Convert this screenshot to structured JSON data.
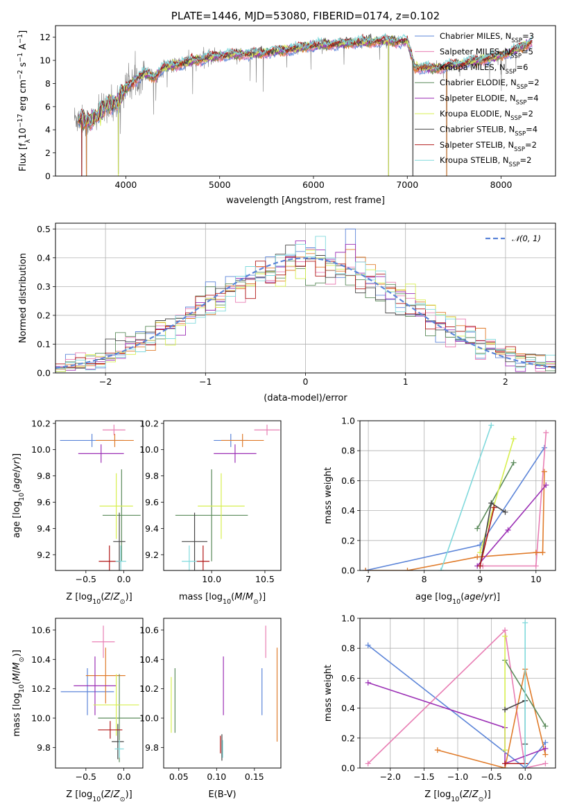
{
  "colors": {
    "Chabrier MILES": "#5b84d8",
    "Salpeter MILES": "#e87db3",
    "Kroupa MILES": "#e07b2a",
    "Chabrier ELODIE": "#5a8a5a",
    "Salpeter ELODIE": "#9b2fb5",
    "Kroupa ELODIE": "#d7ef4e",
    "Chabrier STELIB": "#444444",
    "Salpeter STELIB": "#b01515",
    "Kroupa STELIB": "#7fd9dc",
    "data": "#7a7a7a",
    "normal": "#5b84d8"
  },
  "chart_data": [
    {
      "id": "spectrum",
      "type": "line",
      "title": "PLATE=1446, MJD=53080, FIBERID=0174, z=0.102",
      "xlabel": "wavelength [Angstrom, rest frame]",
      "ylabel": "Flux [fλ10⁻¹⁷ erg cm⁻² s⁻¹ A⁻¹]",
      "xlim": [
        3250,
        8580
      ],
      "ylim": [
        0,
        13
      ],
      "xticks": [
        4000,
        5000,
        6000,
        7000,
        8000
      ],
      "yticks": [
        0,
        2,
        4,
        6,
        8,
        10,
        12
      ],
      "grid": false,
      "legend_position": "right",
      "legend": [
        {
          "label": "Chabrier MILES, N",
          "sub": "SSP",
          "suffix": "=3",
          "key": "Chabrier MILES"
        },
        {
          "label": "Salpeter MILES, N",
          "sub": "SSP",
          "suffix": "=5",
          "key": "Salpeter MILES"
        },
        {
          "label": "Kroupa MILES, N",
          "sub": "SSP",
          "suffix": "=6",
          "key": "Kroupa MILES"
        },
        {
          "label": "Chabrier ELODIE, N",
          "sub": "SSP",
          "suffix": "=2",
          "key": "Chabrier ELODIE"
        },
        {
          "label": "Salpeter ELODIE, N",
          "sub": "SSP",
          "suffix": "=4",
          "key": "Salpeter ELODIE"
        },
        {
          "label": "Kroupa ELODIE, N",
          "sub": "SSP",
          "suffix": "=2",
          "key": "Kroupa ELODIE"
        },
        {
          "label": "Chabrier STELIB, N",
          "sub": "SSP",
          "suffix": "=4",
          "key": "Chabrier STELIB"
        },
        {
          "label": "Salpeter STELIB, N",
          "sub": "SSP",
          "suffix": "=2",
          "key": "Salpeter STELIB"
        },
        {
          "label": "Kroupa STELIB, N",
          "sub": "SSP",
          "suffix": "=2",
          "key": "Kroupa STELIB"
        }
      ],
      "continuum": [
        [
          3450,
          5.0
        ],
        [
          3600,
          4.7
        ],
        [
          3700,
          5.2
        ],
        [
          3800,
          6.2
        ],
        [
          3900,
          6.3
        ],
        [
          4000,
          7.6
        ],
        [
          4100,
          8.3
        ],
        [
          4200,
          8.9
        ],
        [
          4300,
          8.5
        ],
        [
          4400,
          9.4
        ],
        [
          4600,
          9.7
        ],
        [
          4800,
          10.1
        ],
        [
          5000,
          10.4
        ],
        [
          5200,
          10.5
        ],
        [
          5400,
          10.6
        ],
        [
          5600,
          10.8
        ],
        [
          5800,
          11.0
        ],
        [
          6000,
          11.3
        ],
        [
          6200,
          11.4
        ],
        [
          6400,
          11.5
        ],
        [
          6600,
          11.6
        ],
        [
          6800,
          11.7
        ],
        [
          7000,
          11.6
        ],
        [
          7080,
          9.4
        ],
        [
          7300,
          9.3
        ],
        [
          7500,
          9.6
        ],
        [
          7700,
          9.9
        ],
        [
          7900,
          10.2
        ],
        [
          8100,
          10.7
        ],
        [
          8330,
          11.6
        ]
      ],
      "dips": [
        [
          3530,
          0
        ],
        [
          3580,
          0
        ],
        [
          3920,
          0.2
        ],
        [
          6800,
          0
        ],
        [
          7060,
          0
        ],
        [
          7420,
          0
        ]
      ]
    },
    {
      "id": "residuals",
      "type": "bar",
      "xlabel": "(data-model)/error",
      "ylabel": "Normed distribution",
      "xlim": [
        -2.5,
        2.5
      ],
      "ylim": [
        0,
        0.52
      ],
      "xticks": [
        -2,
        -1,
        0,
        1,
        2
      ],
      "yticks": [
        0,
        0.1,
        0.2,
        0.3,
        0.4,
        0.5
      ],
      "grid": true,
      "legend_position": "top-right",
      "legend_label": "𝒩(0, 1)",
      "bin_width": 0.1,
      "gaussian": {
        "mu": 0,
        "sigma": 1
      }
    },
    {
      "id": "age-vs-Z",
      "type": "scatter",
      "xlabel": "Z [log10(Z/Z⊙)]",
      "ylabel": "age [log10(age/yr)]",
      "xlim": [
        -0.9,
        0.25
      ],
      "ylim": [
        9.08,
        10.22
      ],
      "xticks": [
        -0.5,
        0.0
      ],
      "yticks": [
        9.2,
        9.4,
        9.6,
        9.8,
        10.0,
        10.2
      ],
      "grid": false,
      "points": [
        {
          "key": "Chabrier MILES",
          "x": -0.42,
          "y": 10.07,
          "xerr": 0.42,
          "yerr": 0.05
        },
        {
          "key": "Salpeter MILES",
          "x": -0.13,
          "y": 10.15,
          "xerr": 0.15,
          "yerr": 0.04
        },
        {
          "key": "Kroupa MILES",
          "x": -0.12,
          "y": 10.07,
          "xerr": 0.25,
          "yerr": 0.05
        },
        {
          "key": "Chabrier ELODIE",
          "x": -0.03,
          "y": 9.5,
          "xerr": 0.25,
          "yerr": 0.35
        },
        {
          "key": "Salpeter ELODIE",
          "x": -0.3,
          "y": 9.97,
          "xerr": 0.3,
          "yerr": 0.07
        },
        {
          "key": "Kroupa ELODIE",
          "x": -0.1,
          "y": 9.57,
          "xerr": 0.22,
          "yerr": 0.25
        },
        {
          "key": "Chabrier STELIB",
          "x": -0.06,
          "y": 9.3,
          "xerr": 0.08,
          "yerr": 0.22
        },
        {
          "key": "Salpeter STELIB",
          "x": -0.19,
          "y": 9.15,
          "xerr": 0.14,
          "yerr": 0.12
        },
        {
          "key": "Kroupa STELIB",
          "x": -0.04,
          "y": 9.15,
          "xerr": 0.07,
          "yerr": 0.12
        }
      ]
    },
    {
      "id": "age-vs-mass",
      "type": "scatter",
      "xlabel": "mass [log10(M/M⊙)]",
      "ylabel": "",
      "xlim": [
        9.55,
        10.65
      ],
      "ylim": [
        9.08,
        10.22
      ],
      "xticks": [
        10.0,
        10.5
      ],
      "yticks": [
        9.2,
        9.4,
        9.6,
        9.8,
        10.0,
        10.2
      ],
      "grid": false,
      "points": [
        {
          "key": "Chabrier MILES",
          "x": 10.18,
          "y": 10.07,
          "xerr": 0.16,
          "yerr": 0.05
        },
        {
          "key": "Salpeter MILES",
          "x": 10.52,
          "y": 10.15,
          "xerr": 0.12,
          "yerr": 0.04
        },
        {
          "key": "Kroupa MILES",
          "x": 10.29,
          "y": 10.07,
          "xerr": 0.2,
          "yerr": 0.05
        },
        {
          "key": "Chabrier ELODIE",
          "x": 10.0,
          "y": 9.5,
          "xerr": 0.34,
          "yerr": 0.35
        },
        {
          "key": "Salpeter ELODIE",
          "x": 10.22,
          "y": 9.97,
          "xerr": 0.2,
          "yerr": 0.07
        },
        {
          "key": "Kroupa ELODIE",
          "x": 10.09,
          "y": 9.57,
          "xerr": 0.22,
          "yerr": 0.25
        },
        {
          "key": "Chabrier STELIB",
          "x": 9.84,
          "y": 9.3,
          "xerr": 0.12,
          "yerr": 0.22
        },
        {
          "key": "Salpeter STELIB",
          "x": 9.92,
          "y": 9.15,
          "xerr": 0.06,
          "yerr": 0.12
        },
        {
          "key": "Kroupa STELIB",
          "x": 9.79,
          "y": 9.15,
          "xerr": 0.07,
          "yerr": 0.12
        }
      ]
    },
    {
      "id": "weight-vs-age",
      "type": "line",
      "xlabel": "age [log10(age/yr)]",
      "ylabel": "mass weight",
      "xlim": [
        6.85,
        10.35
      ],
      "ylim": [
        0,
        1
      ],
      "xticks": [
        7,
        8,
        9,
        10
      ],
      "yticks": [
        0.0,
        0.2,
        0.4,
        0.6,
        0.8,
        1.0
      ],
      "grid": true,
      "series": [
        {
          "key": "Chabrier MILES",
          "x": [
            6.95,
            9.0,
            10.15
          ],
          "y": [
            0.0,
            0.17,
            0.82
          ]
        },
        {
          "key": "Salpeter MILES",
          "x": [
            9.05,
            10.0,
            10.18
          ],
          "y": [
            0.03,
            0.03,
            0.92
          ]
        },
        {
          "key": "Kroupa MILES",
          "x": [
            6.95,
            7.7,
            8.95,
            10.0,
            10.12,
            10.15
          ],
          "y": [
            0.0,
            0.0,
            0.09,
            0.12,
            0.12,
            0.66
          ]
        },
        {
          "key": "Chabrier ELODIE",
          "x": [
            8.95,
            9.6
          ],
          "y": [
            0.28,
            0.72
          ]
        },
        {
          "key": "Salpeter ELODIE",
          "x": [
            8.95,
            9.5,
            10.18
          ],
          "y": [
            0.03,
            0.27,
            0.57
          ]
        },
        {
          "key": "Kroupa ELODIE",
          "x": [
            9.0,
            9.6
          ],
          "y": [
            0.12,
            0.88
          ]
        },
        {
          "key": "Chabrier STELIB",
          "x": [
            9.0,
            9.2,
            9.45
          ],
          "y": [
            0.03,
            0.45,
            0.39
          ]
        },
        {
          "key": "Salpeter STELIB",
          "x": [
            9.0,
            9.25
          ],
          "y": [
            0.03,
            0.42
          ]
        },
        {
          "key": "Kroupa STELIB",
          "x": [
            8.3,
            9.2
          ],
          "y": [
            0.0,
            0.97
          ]
        }
      ]
    },
    {
      "id": "mass-vs-Z",
      "type": "scatter",
      "xlabel": "Z [log10(Z/Z⊙)]",
      "ylabel": "mass [log10(M/M⊙)]",
      "xlim": [
        -0.9,
        0.25
      ],
      "ylim": [
        9.66,
        10.68
      ],
      "xticks": [
        -0.5,
        0.0
      ],
      "yticks": [
        9.8,
        10.0,
        10.2,
        10.4,
        10.6
      ],
      "grid": false,
      "points": [
        {
          "key": "Chabrier MILES",
          "x": -0.48,
          "y": 10.18,
          "xerr": 0.35,
          "yerr": 0.16
        },
        {
          "key": "Salpeter MILES",
          "x": -0.27,
          "y": 10.52,
          "xerr": 0.15,
          "yerr": 0.11
        },
        {
          "key": "Kroupa MILES",
          "x": -0.24,
          "y": 10.29,
          "xerr": 0.26,
          "yerr": 0.19
        },
        {
          "key": "Chabrier ELODIE",
          "x": -0.06,
          "y": 10.0,
          "xerr": 0.28,
          "yerr": 0.3
        },
        {
          "key": "Salpeter ELODIE",
          "x": -0.38,
          "y": 10.22,
          "xerr": 0.28,
          "yerr": 0.2
        },
        {
          "key": "Kroupa ELODIE",
          "x": -0.1,
          "y": 10.09,
          "xerr": 0.3,
          "yerr": 0.21
        },
        {
          "key": "Chabrier STELIB",
          "x": -0.08,
          "y": 9.84,
          "xerr": 0.08,
          "yerr": 0.12
        },
        {
          "key": "Salpeter STELIB",
          "x": -0.18,
          "y": 9.92,
          "xerr": 0.16,
          "yerr": 0.06
        },
        {
          "key": "Kroupa STELIB",
          "x": -0.06,
          "y": 9.79,
          "xerr": 0.06,
          "yerr": 0.06
        }
      ]
    },
    {
      "id": "mass-vs-ebv",
      "type": "scatter",
      "xlabel": "E(B-V)",
      "ylabel": "",
      "xlim": [
        0.03,
        0.185
      ],
      "ylim": [
        9.66,
        10.68
      ],
      "xticks": [
        0.05,
        0.1,
        0.15
      ],
      "yticks": [
        9.8,
        10.0,
        10.2,
        10.4,
        10.6
      ],
      "grid": false,
      "points": [
        {
          "key": "Chabrier MILES",
          "x": 0.16,
          "y": 10.18,
          "xerr": 0,
          "yerr": 0.16
        },
        {
          "key": "Salpeter MILES",
          "x": 0.165,
          "y": 10.52,
          "xerr": 0,
          "yerr": 0.11
        },
        {
          "key": "Kroupa MILES",
          "x": 0.18,
          "y": 10.16,
          "xerr": 0,
          "yerr": 0.32
        },
        {
          "key": "Chabrier ELODIE",
          "x": 0.045,
          "y": 10.12,
          "xerr": 0,
          "yerr": 0.22
        },
        {
          "key": "Salpeter ELODIE",
          "x": 0.109,
          "y": 10.22,
          "xerr": 0,
          "yerr": 0.2
        },
        {
          "key": "Kroupa ELODIE",
          "x": 0.04,
          "y": 10.09,
          "xerr": 0,
          "yerr": 0.19
        },
        {
          "key": "Chabrier STELIB",
          "x": 0.107,
          "y": 9.8,
          "xerr": 0,
          "yerr": 0.09
        },
        {
          "key": "Salpeter STELIB",
          "x": 0.105,
          "y": 9.82,
          "xerr": 0,
          "yerr": 0.06
        },
        {
          "key": "Kroupa STELIB",
          "x": 0.108,
          "y": 9.79,
          "xerr": 0,
          "yerr": 0.06
        }
      ]
    },
    {
      "id": "weight-vs-Z",
      "type": "line",
      "xlabel": "Z [log10(Z/Z⊙)]",
      "ylabel": "mass weight",
      "xlim": [
        -2.45,
        0.45
      ],
      "ylim": [
        0,
        1
      ],
      "xticks": [
        -2.0,
        -1.5,
        -1.0,
        -0.5,
        0.0
      ],
      "yticks": [
        0.0,
        0.2,
        0.4,
        0.6,
        0.8,
        1.0
      ],
      "grid": true,
      "series": [
        {
          "key": "Chabrier MILES",
          "x": [
            -2.33,
            0.0,
            0.3
          ],
          "y": [
            0.82,
            0.0,
            0.17
          ]
        },
        {
          "key": "Salpeter MILES",
          "x": [
            -2.33,
            -0.3,
            0.0,
            0.3
          ],
          "y": [
            0.03,
            0.92,
            0.0,
            0.03
          ]
        },
        {
          "key": "Kroupa MILES",
          "x": [
            -1.3,
            -0.3,
            0.0,
            0.3
          ],
          "y": [
            0.12,
            0.0,
            0.66,
            0.09
          ]
        },
        {
          "key": "Chabrier ELODIE",
          "x": [
            -0.3,
            0.3
          ],
          "y": [
            0.72,
            0.28
          ]
        },
        {
          "key": "Salpeter ELODIE",
          "x": [
            -2.33,
            -0.3,
            -0.3,
            0.3
          ],
          "y": [
            0.57,
            0.27,
            0.03,
            0.13
          ]
        },
        {
          "key": "Kroupa ELODIE",
          "x": [
            -0.3,
            -0.3
          ],
          "y": [
            0.12,
            0.88
          ]
        },
        {
          "key": "Chabrier STELIB",
          "x": [
            -0.3,
            0.0,
            0.0
          ],
          "y": [
            0.39,
            0.45,
            0.16
          ]
        },
        {
          "key": "Salpeter STELIB",
          "x": [
            -0.3,
            0.0
          ],
          "y": [
            0.03,
            0.03
          ]
        },
        {
          "key": "Kroupa STELIB",
          "x": [
            0.0,
            0.0
          ],
          "y": [
            0.0,
            0.97
          ]
        }
      ]
    }
  ]
}
